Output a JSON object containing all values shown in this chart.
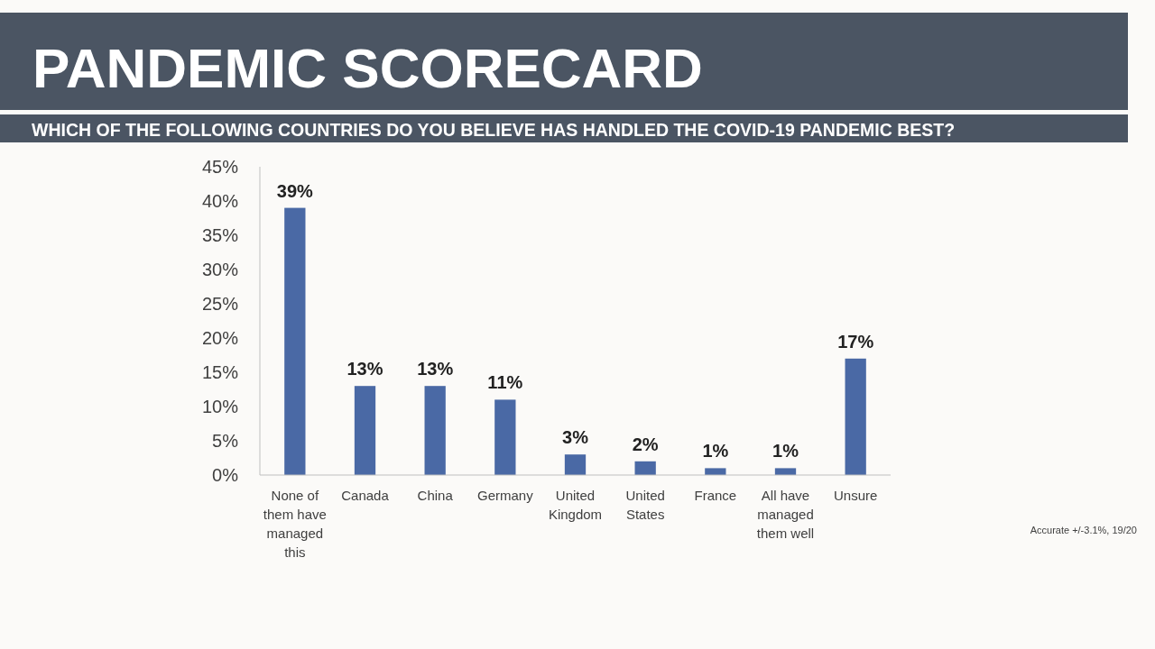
{
  "chart_data": {
    "type": "bar",
    "title": "PANDEMIC SCORECARD",
    "subtitle": "WHICH OF THE FOLLOWING COUNTRIES DO YOU BELIEVE HAS HANDLED THE COVID-19 PANDEMIC BEST?",
    "categories": [
      "None of them have managed this",
      "Canada",
      "China",
      "Germany",
      "United Kingdom",
      "United States",
      "France",
      "All have managed them well",
      "Unsure"
    ],
    "values": [
      39,
      13,
      13,
      11,
      3,
      2,
      1,
      1,
      17
    ],
    "value_labels": [
      "39%",
      "13%",
      "13%",
      "11%",
      "3%",
      "2%",
      "1%",
      "1%",
      "17%"
    ],
    "color": "#4a69a5",
    "ylim": [
      0,
      45
    ],
    "yticks": [
      {
        "value": 0,
        "label": "0%"
      },
      {
        "value": 5,
        "label": "5%"
      },
      {
        "value": 10,
        "label": "10%"
      },
      {
        "value": 15,
        "label": "15%"
      },
      {
        "value": 20,
        "label": "20%"
      },
      {
        "value": 25,
        "label": "25%"
      },
      {
        "value": 30,
        "label": "30%"
      },
      {
        "value": 35,
        "label": "35%"
      },
      {
        "value": 40,
        "label": "40%"
      },
      {
        "value": 45,
        "label": "45%"
      }
    ],
    "grid": false,
    "annotations": [
      "Accurate +/-3.1%, 19/20"
    ]
  }
}
